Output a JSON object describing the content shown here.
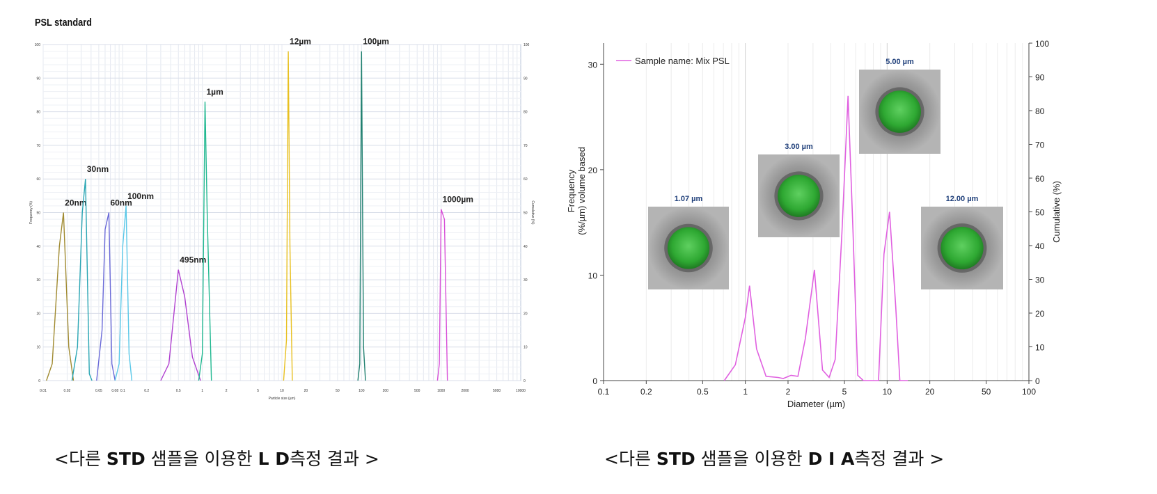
{
  "left_panel": {
    "title": "PSL standard",
    "caption": {
      "prefix": "<다른 ",
      "bold1": "STD",
      "middle": " 샘플을 이용한 ",
      "bold2": "L D",
      "suffix": "측정 결과 >"
    }
  },
  "right_panel": {
    "caption": {
      "prefix": "<다른 ",
      "bold1": "STD",
      "middle": " 샘플을 이용한 ",
      "bold2": "D I A",
      "suffix": "측정 결과 >"
    }
  },
  "chart_data": [
    {
      "type": "line",
      "title": "",
      "xlabel": "Particle size (µm)",
      "ylabel": "Frequency (%)",
      "y2label": "Cumulative (%)",
      "xscale": "log",
      "xlim": [
        0.01,
        10000
      ],
      "ylim": [
        0,
        100
      ],
      "y2lim": [
        0,
        100
      ],
      "grid": true,
      "colors": {
        "20nm": "#a08a30",
        "30nm": "#2aa6b4",
        "60nm": "#6a6ad8",
        "100nm": "#5ac8e8",
        "495nm": "#b040d0",
        "1µm": "#20b890",
        "12µm": "#e8c020",
        "100µm": "#208070",
        "1000µm": "#d850d8"
      },
      "series": [
        {
          "name": "20nm",
          "peak_label": "20nm",
          "x": [
            0.011,
            0.013,
            0.016,
            0.018,
            0.021,
            0.024
          ],
          "y": [
            0,
            5,
            40,
            50,
            10,
            0
          ]
        },
        {
          "name": "30nm",
          "peak_label": "30nm",
          "x": [
            0.023,
            0.027,
            0.031,
            0.034,
            0.038,
            0.041
          ],
          "y": [
            0,
            10,
            50,
            60,
            2,
            0
          ]
        },
        {
          "name": "60nm",
          "peak_label": "60nm",
          "x": [
            0.047,
            0.055,
            0.06,
            0.067,
            0.073,
            0.08
          ],
          "y": [
            0,
            15,
            45,
            50,
            5,
            0
          ]
        },
        {
          "name": "100nm",
          "peak_label": "100nm",
          "x": [
            0.08,
            0.09,
            0.1,
            0.11,
            0.12,
            0.13
          ],
          "y": [
            0,
            5,
            40,
            52,
            8,
            0
          ]
        },
        {
          "name": "495nm",
          "peak_label": "495nm",
          "x": [
            0.3,
            0.38,
            0.5,
            0.6,
            0.75,
            0.95
          ],
          "y": [
            0,
            5,
            33,
            25,
            7,
            0
          ]
        },
        {
          "name": "1µm",
          "peak_label": "1µm",
          "x": [
            0.9,
            1.0,
            1.08,
            1.15,
            1.3
          ],
          "y": [
            0,
            8,
            83,
            50,
            0
          ]
        },
        {
          "name": "12µm",
          "peak_label": "12µm",
          "x": [
            10.5,
            11.4,
            12,
            12.6,
            13.5
          ],
          "y": [
            0,
            12,
            98,
            40,
            0
          ]
        },
        {
          "name": "100µm",
          "peak_label": "100µm",
          "x": [
            90,
            95,
            100,
            106,
            112
          ],
          "y": [
            0,
            5,
            98,
            10,
            0
          ]
        },
        {
          "name": "1000µm",
          "peak_label": "1000µm",
          "x": [
            900,
            950,
            1000,
            1100,
            1200
          ],
          "y": [
            0,
            5,
            51,
            48,
            0
          ]
        }
      ],
      "y_ticks": [
        0,
        10,
        20,
        30,
        40,
        50,
        60,
        70,
        80,
        90,
        100
      ],
      "x_ticks": [
        0.01,
        0.02,
        0.05,
        0.08,
        0.1,
        0.2,
        0.5,
        1,
        2,
        5,
        10,
        20,
        50,
        100,
        200,
        500,
        1000,
        2000,
        5000,
        10000
      ]
    },
    {
      "type": "line",
      "title": "",
      "xlabel": "Diameter (µm)",
      "ylabel": "Frequency (%/µm) volume based",
      "ylabel_lines": [
        "Frequency",
        "(%/µm) volume based"
      ],
      "y2label": "Cumulative (%)",
      "xscale": "log",
      "xlim": [
        0.1,
        100
      ],
      "ylim": [
        0,
        32
      ],
      "y2lim": [
        0,
        100
      ],
      "grid": true,
      "legend": {
        "label": "Sample name: Mix PSL",
        "position": "top-left"
      },
      "color": "#e060e0",
      "x_ticks": [
        0.1,
        0.2,
        0.5,
        1,
        2,
        5,
        10,
        20,
        50,
        100
      ],
      "x_tick_labels": [
        "0.1",
        "0.2",
        "0.5",
        "1",
        "2",
        "5",
        "10",
        "20",
        "50",
        "100"
      ],
      "y_ticks": [
        0,
        10,
        20,
        30
      ],
      "y2_ticks": [
        0,
        10,
        20,
        30,
        40,
        50,
        60,
        70,
        80,
        90,
        100
      ],
      "series": [
        {
          "name": "Sample name: Mix PSL",
          "x": [
            0.71,
            0.85,
            1.0,
            1.07,
            1.2,
            1.4,
            1.7,
            1.85,
            2.1,
            2.35,
            2.65,
            3.07,
            3.5,
            3.9,
            4.3,
            4.8,
            5.3,
            5.75,
            6.2,
            6.8,
            7.9,
            8.7,
            9.5,
            10.4,
            11.5,
            12.3,
            14
          ],
          "y": [
            0,
            1.5,
            6,
            9,
            3,
            0.4,
            0.3,
            0.2,
            0.5,
            0.4,
            4,
            10.5,
            1,
            0.3,
            2,
            14,
            27,
            14,
            0.5,
            0,
            0,
            0,
            12,
            16,
            7,
            0,
            0
          ]
        }
      ],
      "images": [
        {
          "label": "1.07 µm"
        },
        {
          "label": "3.00 µm"
        },
        {
          "label": "5.00 µm"
        },
        {
          "label": "12.00 µm"
        }
      ]
    }
  ]
}
